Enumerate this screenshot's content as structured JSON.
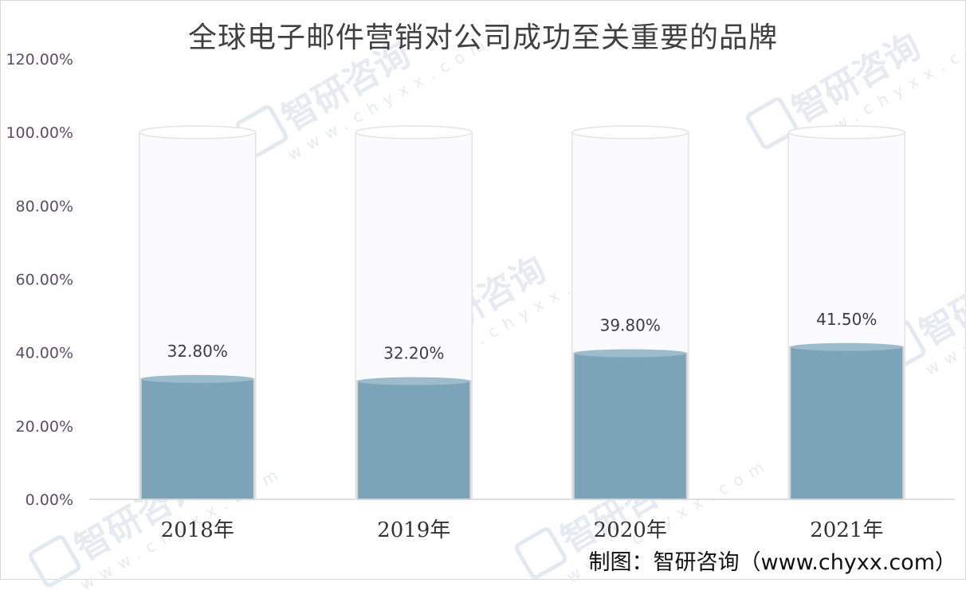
{
  "watermark": {
    "brand": "智研咨询",
    "site": "www.chyxx.com"
  },
  "chart_data": {
    "type": "bar",
    "title": "全球电子邮件营销对公司成功至关重要的品牌",
    "categories": [
      "2018年",
      "2019年",
      "2020年",
      "2021年"
    ],
    "values": [
      32.8,
      32.2,
      39.8,
      41.5
    ],
    "data_labels": [
      "32.80%",
      "32.20%",
      "39.80%",
      "41.50%"
    ],
    "ylim": [
      0,
      120
    ],
    "yticks": [
      0,
      20,
      40,
      60,
      80,
      100,
      120
    ],
    "ytick_labels": [
      "0.00%",
      "20.00%",
      "40.00%",
      "60.00%",
      "80.00%",
      "100.00%",
      "120.00%"
    ],
    "container_max": 100,
    "grid": false,
    "legend": "none",
    "colors": {
      "bar_fill": "#7ba4b8",
      "bar_top": "#9dbccb",
      "container_stroke": "#e3e3e6",
      "container_fill": "#fbfbfd",
      "axis": "#bfbfbf"
    },
    "source": "制图：智研咨询（www.chyxx.com）"
  }
}
